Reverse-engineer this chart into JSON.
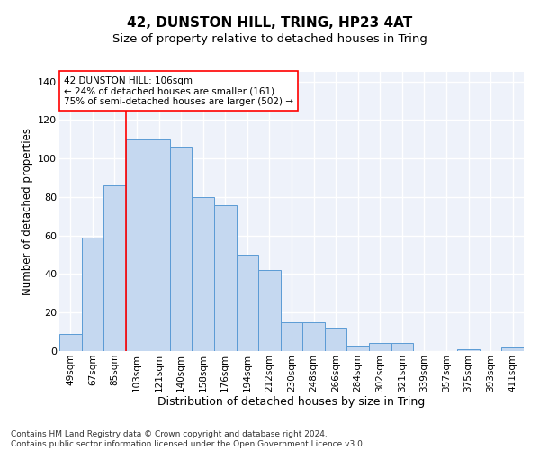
{
  "title1": "42, DUNSTON HILL, TRING, HP23 4AT",
  "title2": "Size of property relative to detached houses in Tring",
  "xlabel": "Distribution of detached houses by size in Tring",
  "ylabel": "Number of detached properties",
  "categories": [
    "49sqm",
    "67sqm",
    "85sqm",
    "103sqm",
    "121sqm",
    "140sqm",
    "158sqm",
    "176sqm",
    "194sqm",
    "212sqm",
    "230sqm",
    "248sqm",
    "266sqm",
    "284sqm",
    "302sqm",
    "321sqm",
    "339sqm",
    "357sqm",
    "375sqm",
    "393sqm",
    "411sqm"
  ],
  "values": [
    9,
    59,
    86,
    110,
    110,
    106,
    80,
    76,
    50,
    42,
    15,
    15,
    12,
    3,
    4,
    4,
    0,
    0,
    1,
    0,
    2
  ],
  "bar_color": "#c5d8f0",
  "bar_edge_color": "#5b9bd5",
  "vline_index": 3,
  "vline_color": "red",
  "annotation_text": "42 DUNSTON HILL: 106sqm\n← 24% of detached houses are smaller (161)\n75% of semi-detached houses are larger (502) →",
  "annotation_box_color": "white",
  "annotation_box_edge_color": "red",
  "ylim": [
    0,
    145
  ],
  "background_color": "#eef2fa",
  "grid_color": "white",
  "footer": "Contains HM Land Registry data © Crown copyright and database right 2024.\nContains public sector information licensed under the Open Government Licence v3.0.",
  "title1_fontsize": 11,
  "title2_fontsize": 9.5,
  "xlabel_fontsize": 9,
  "ylabel_fontsize": 8.5,
  "tick_fontsize": 7.5,
  "annotation_fontsize": 7.5,
  "footer_fontsize": 6.5
}
